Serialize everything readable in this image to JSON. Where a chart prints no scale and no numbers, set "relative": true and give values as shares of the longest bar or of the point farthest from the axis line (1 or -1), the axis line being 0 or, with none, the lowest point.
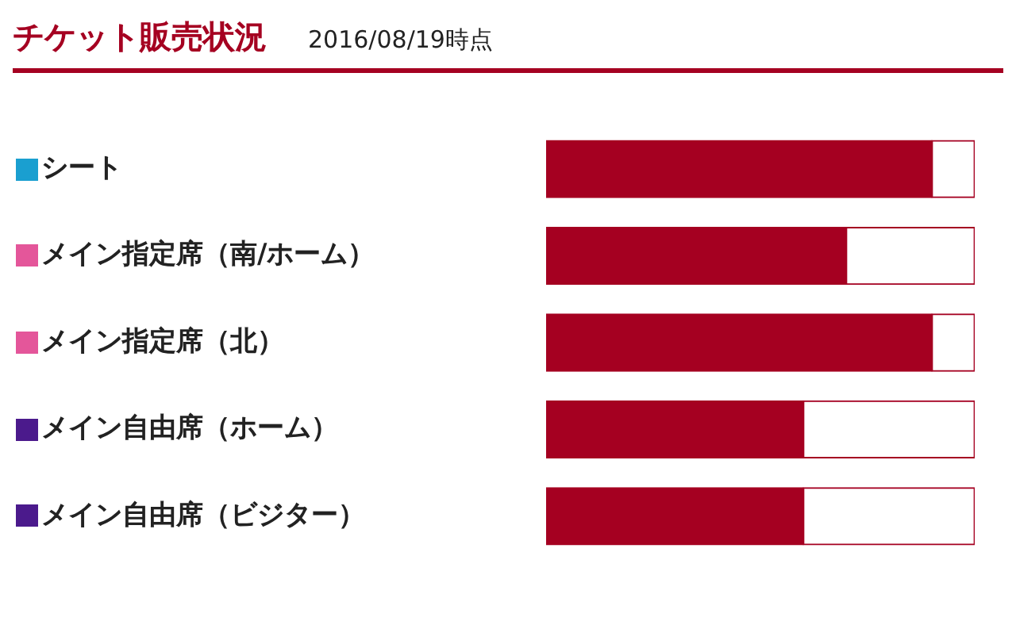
{
  "chart_data": {
    "type": "bar",
    "title": "チケット販売状況",
    "subtitle": "2016/08/19時点",
    "orientation": "horizontal",
    "stacked": true,
    "relative": true,
    "categories": [
      "シート",
      "メイン指定席（南/ホーム）",
      "メイン指定席（北）",
      "メイン自由席（ホーム）",
      "メイン自由席（ビジター）"
    ],
    "series": [
      {
        "color": "#a50021",
        "values": [
          0.9,
          0.7,
          0.9,
          0.6,
          0.6
        ]
      },
      {
        "color": "#ffffff",
        "values": [
          0.1,
          0.3,
          0.1,
          0.4,
          0.4
        ]
      }
    ]
  }
}
